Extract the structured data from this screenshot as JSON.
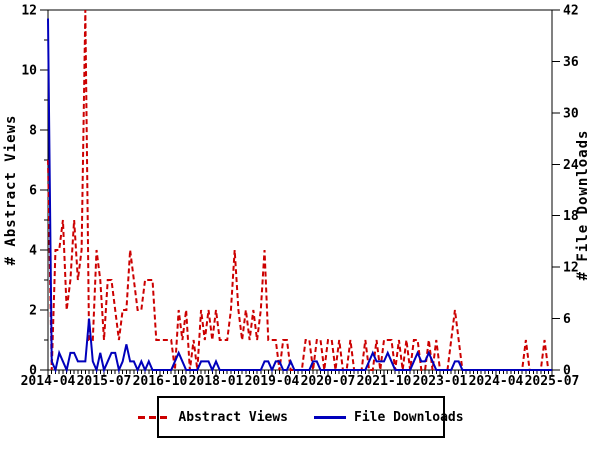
{
  "chart_data": {
    "type": "line",
    "title": "",
    "grid": "off",
    "legend_position": "bottom-box",
    "x_start": "2014-04",
    "x_end": "2025-07",
    "x_tick_labels": [
      "2014-04",
      "2015-07",
      "2016-10",
      "2018-01",
      "2019-04",
      "2020-07",
      "2021-10",
      "2023-01",
      "2024-04",
      "2025-07"
    ],
    "x_label_tick_interval_months": 15,
    "x_minor_tick_every_months": 1,
    "left_axis": {
      "label": "# Abstract Views",
      "min": 0,
      "max": 12,
      "major_tick": 2,
      "minor_tick": 1
    },
    "right_axis": {
      "label": "# File Downloads",
      "min": 0,
      "max": 42,
      "major_tick": 6
    },
    "series": [
      {
        "name": "Abstract Views",
        "axis": "left",
        "color": "#cc0000",
        "style": "dashed",
        "values": [
          7,
          0,
          4,
          4,
          5,
          2,
          3,
          5,
          3,
          4,
          12,
          1,
          1,
          4,
          3,
          1,
          3,
          3,
          2,
          1,
          2,
          2,
          4,
          3,
          2,
          2,
          3,
          3,
          3,
          1,
          1,
          1,
          1,
          1,
          0,
          2,
          1,
          2,
          0,
          1,
          0,
          2,
          1,
          2,
          1,
          2,
          1,
          1,
          1,
          2,
          4,
          2,
          1,
          2,
          1,
          2,
          1,
          2,
          4,
          1,
          1,
          1,
          0,
          1,
          1,
          0,
          0,
          0,
          0,
          1,
          1,
          0,
          1,
          1,
          0,
          1,
          1,
          0,
          1,
          0,
          0,
          1,
          0,
          0,
          0,
          1,
          0,
          0,
          1,
          0,
          1,
          1,
          1,
          0,
          1,
          0,
          1,
          0,
          1,
          1,
          0,
          0,
          1,
          0,
          1,
          0,
          0,
          0,
          1,
          2,
          1,
          0,
          0,
          0,
          0,
          0,
          0,
          0,
          0,
          0,
          0,
          0,
          0,
          0,
          0,
          0,
          0,
          0,
          1,
          0,
          0,
          0,
          0,
          1,
          0,
          0
        ]
      },
      {
        "name": "File Downloads",
        "axis": "right",
        "color": "#0000bb",
        "style": "solid",
        "values": [
          41,
          1,
          0,
          2,
          1,
          0,
          2,
          2,
          1,
          1,
          1,
          6,
          1,
          0,
          2,
          0,
          1,
          2,
          2,
          0,
          1,
          3,
          1,
          1,
          0,
          1,
          0,
          1,
          0,
          0,
          0,
          0,
          0,
          0,
          1,
          2,
          1,
          0,
          0,
          0,
          0,
          1,
          1,
          1,
          0,
          1,
          0,
          0,
          0,
          0,
          0,
          0,
          0,
          0,
          0,
          0,
          0,
          0,
          1,
          1,
          0,
          1,
          1,
          0,
          0,
          1,
          0,
          0,
          0,
          0,
          0,
          1,
          1,
          0,
          0,
          0,
          0,
          0,
          0,
          0,
          0,
          0,
          0,
          0,
          0,
          0,
          1,
          2,
          1,
          1,
          1,
          2,
          1,
          0,
          0,
          0,
          0,
          0,
          1,
          2,
          1,
          1,
          2,
          1,
          0,
          0,
          0,
          0,
          0,
          1,
          1,
          0,
          0,
          0,
          0,
          0,
          0,
          0,
          0,
          0,
          0,
          0,
          0,
          0,
          0,
          0,
          0,
          0,
          0,
          0,
          0,
          0,
          0,
          0,
          0,
          0
        ]
      }
    ]
  },
  "colors": {
    "axis": "#000000",
    "background": "#ffffff",
    "abstract_views": "#cc0000",
    "file_downloads": "#0000bb"
  }
}
